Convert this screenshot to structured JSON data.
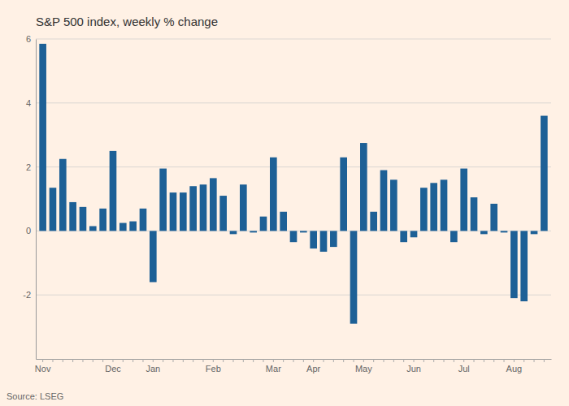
{
  "chart_data": {
    "type": "bar",
    "title": "S&P 500 index, weekly % change",
    "annotations": [
      "Source: LSEG"
    ],
    "categories": [
      "Nov",
      null,
      null,
      null,
      null,
      null,
      null,
      "Dec",
      null,
      null,
      null,
      "Jan",
      null,
      null,
      null,
      null,
      null,
      "Feb",
      null,
      null,
      null,
      null,
      null,
      "Mar",
      null,
      null,
      null,
      "Apr",
      null,
      null,
      null,
      null,
      "May",
      null,
      null,
      null,
      null,
      "Jun",
      null,
      null,
      null,
      null,
      "Jul",
      null,
      null,
      null,
      null,
      "Aug",
      null,
      null,
      null
    ],
    "values": [
      5.85,
      1.35,
      2.25,
      0.9,
      0.75,
      0.15,
      0.7,
      2.5,
      0.25,
      0.3,
      0.7,
      -1.6,
      1.95,
      1.2,
      1.2,
      1.4,
      1.45,
      1.65,
      1.1,
      -0.1,
      1.45,
      -0.05,
      0.45,
      2.3,
      0.6,
      -0.35,
      -0.05,
      -0.55,
      -0.65,
      -0.5,
      2.3,
      -2.9,
      2.75,
      0.6,
      1.9,
      1.6,
      -0.35,
      -0.2,
      1.35,
      1.5,
      1.6,
      -0.35,
      1.95,
      1.05,
      -0.1,
      0.85,
      -0.05,
      -2.1,
      -2.2,
      -0.1,
      3.6
    ],
    "color": "#1d6096",
    "ylim": [
      -4,
      6
    ],
    "yticks": [
      -2,
      0,
      2,
      4,
      6
    ],
    "grid": true
  }
}
